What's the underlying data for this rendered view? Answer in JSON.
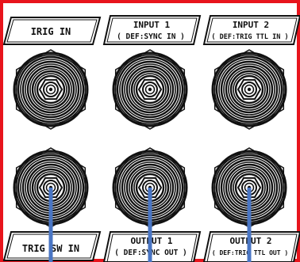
{
  "panel": {
    "border_color": "#e8141c",
    "line_color": "#111111",
    "pointer_color": "#4a76c4"
  },
  "labels": {
    "top_left": {
      "line1": "IRIG IN",
      "line2": ""
    },
    "top_middle": {
      "line1": "INPUT 1",
      "line2": "( DEF:SYNC IN )"
    },
    "top_right": {
      "line1": "INPUT 2",
      "line2": "( DEF:TRIG TTL IN )"
    },
    "bottom_left": {
      "line1": "TRIG SW IN",
      "line2": ""
    },
    "bottom_middle": {
      "line1": "OUTPUT 1",
      "line2": "( DEF:SYNC OUT )"
    },
    "bottom_right": {
      "line1": "OUTPUT 2",
      "line2": "( DEF:TRIG TTL OUT )"
    }
  },
  "connectors": [
    {
      "name": "irig-in",
      "highlighted": false
    },
    {
      "name": "input-1",
      "highlighted": false
    },
    {
      "name": "input-2",
      "highlighted": false
    },
    {
      "name": "trig-sw-in",
      "highlighted": true
    },
    {
      "name": "output-1",
      "highlighted": true
    },
    {
      "name": "output-2",
      "highlighted": true
    }
  ]
}
